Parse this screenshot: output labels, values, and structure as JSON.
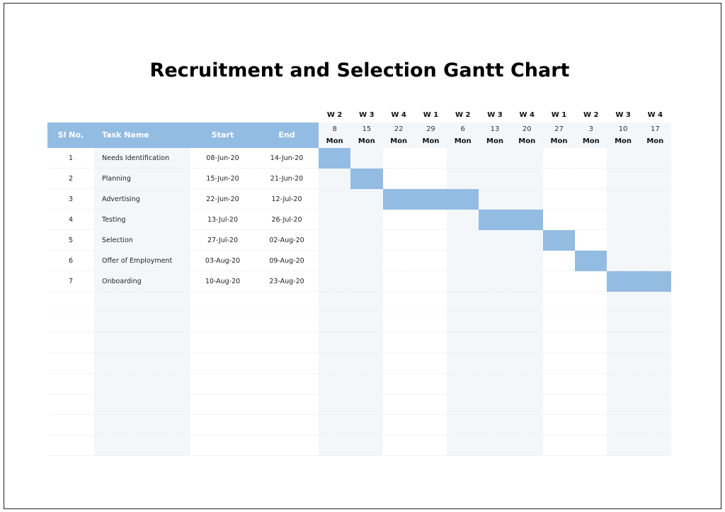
{
  "title": "Recruitment and Selection Gantt Chart",
  "headers": {
    "sl": "Sl No.",
    "task": "Task Name",
    "start": "Start",
    "end": "End"
  },
  "weeks": [
    {
      "week": "W 2",
      "date": "8",
      "day": "Mon",
      "shaded": true
    },
    {
      "week": "W 3",
      "date": "15",
      "day": "Mon",
      "shaded": true
    },
    {
      "week": "W 4",
      "date": "22",
      "day": "Mon",
      "shaded": false
    },
    {
      "week": "W 1",
      "date": "29",
      "day": "Mon",
      "shaded": false
    },
    {
      "week": "W 2",
      "date": "6",
      "day": "Mon",
      "shaded": true
    },
    {
      "week": "W 3",
      "date": "13",
      "day": "Mon",
      "shaded": true
    },
    {
      "week": "W 4",
      "date": "20",
      "day": "Mon",
      "shaded": true
    },
    {
      "week": "W 1",
      "date": "27",
      "day": "Mon",
      "shaded": false
    },
    {
      "week": "W 2",
      "date": "3",
      "day": "Mon",
      "shaded": false
    },
    {
      "week": "W 3",
      "date": "10",
      "day": "Mon",
      "shaded": true
    },
    {
      "week": "W 4",
      "date": "17",
      "day": "Mon",
      "shaded": true
    }
  ],
  "tasks": [
    {
      "sl": "1",
      "name": "Needs Identification",
      "start": "08-Jun-20",
      "end": "14-Jun-20",
      "bar_start_week": 0,
      "bar_weeks": 1
    },
    {
      "sl": "2",
      "name": "Planning",
      "start": "15-Jun-20",
      "end": "21-Jun-20",
      "bar_start_week": 1,
      "bar_weeks": 1
    },
    {
      "sl": "3",
      "name": "Advertising",
      "start": "22-Jun-20",
      "end": "12-Jul-20",
      "bar_start_week": 2,
      "bar_weeks": 3
    },
    {
      "sl": "4",
      "name": "Testing",
      "start": "13-Jul-20",
      "end": "26-Jul-20",
      "bar_start_week": 5,
      "bar_weeks": 2
    },
    {
      "sl": "5",
      "name": "Selection",
      "start": "27-Jul-20",
      "end": "02-Aug-20",
      "bar_start_week": 7,
      "bar_weeks": 1
    },
    {
      "sl": "6",
      "name": "Offer of Employment",
      "start": "03-Aug-20",
      "end": "09-Aug-20",
      "bar_start_week": 8,
      "bar_weeks": 1
    },
    {
      "sl": "7",
      "name": "Onboarding",
      "start": "10-Aug-20",
      "end": "23-Aug-20",
      "bar_start_week": 9,
      "bar_weeks": 2
    }
  ],
  "colors": {
    "header": "#93bce3",
    "bar": "#93bce3",
    "shade": "#f4f7fa"
  }
}
